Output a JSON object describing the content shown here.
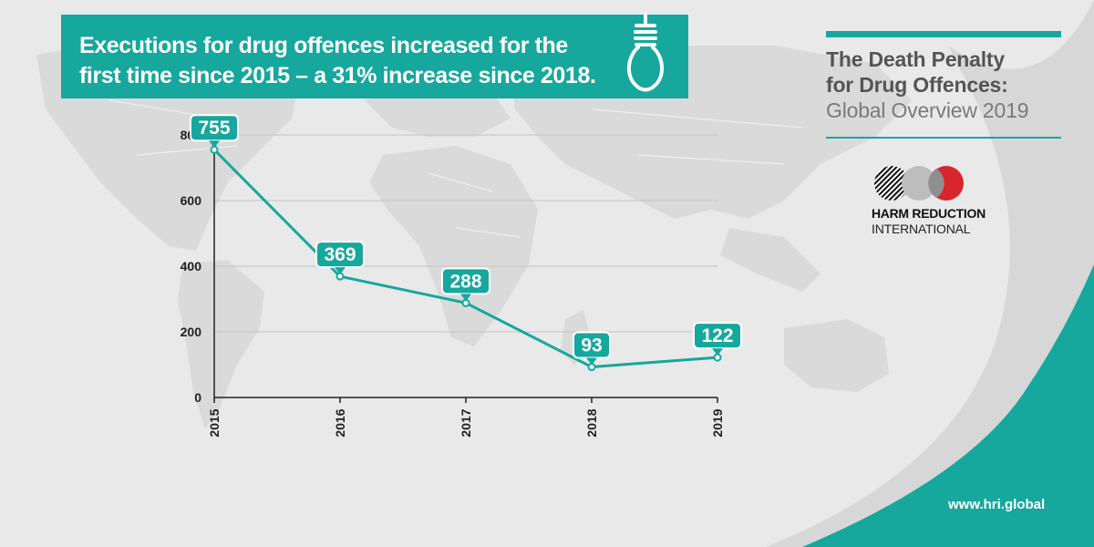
{
  "headline": {
    "line1": "Executions for drug offences increased for the",
    "line2": "first time since 2015 – a 31% increase since 2018."
  },
  "report": {
    "title_line1": "The Death Penalty",
    "title_line2": "for Drug Offences:",
    "subtitle": "Global Overview 2019"
  },
  "organization": {
    "name_line1": "HARM REDUCTION",
    "name_line2": "INTERNATIONAL"
  },
  "website": "www.hri.global",
  "icons": [
    "noose-icon",
    "hri-logo"
  ],
  "colors": {
    "accent": "#16a79d",
    "background": "#e9e9e9",
    "logo_red": "#d7262e"
  },
  "chart_data": {
    "type": "line",
    "categories": [
      "2015",
      "2016",
      "2017",
      "2018",
      "2019"
    ],
    "values": [
      755,
      369,
      288,
      93,
      122
    ],
    "data_labels": [
      "755",
      "369",
      "288",
      "93",
      "122"
    ],
    "y_ticks": [
      0,
      200,
      400,
      600,
      800
    ],
    "ylim": [
      0,
      800
    ],
    "grid": true,
    "title": "",
    "xlabel": "",
    "ylabel": ""
  }
}
